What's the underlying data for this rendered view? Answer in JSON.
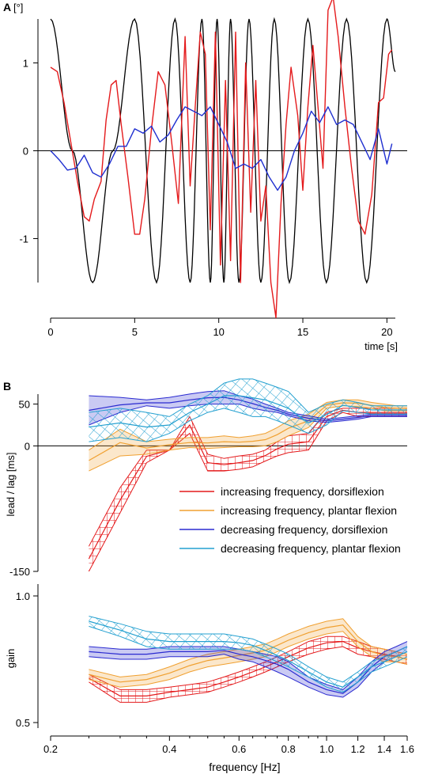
{
  "figure": {
    "panel_a_label": "A",
    "panel_a_unit": "[°]",
    "panel_b_label": "B"
  },
  "chart_data": [
    {
      "type": "line",
      "panel": "A",
      "ylabel": "[°]",
      "xlabel": "time [s]",
      "xlim": [
        0,
        20.5
      ],
      "ylim": [
        -1.5,
        1.5
      ],
      "xticks": [
        "0",
        "5",
        "10",
        "15",
        "20"
      ],
      "yticks": [
        "1",
        "0",
        "-1"
      ],
      "colors": {
        "stimulus": "#000000",
        "response_red": "#e41a1c",
        "response_blue": "#1f2fd0"
      },
      "series": [
        {
          "color": "#000000",
          "kind": "sinusoid",
          "x": [
            0,
            1.3,
            2.5,
            3.7,
            5,
            6.3,
            7.4,
            8.3,
            9.0,
            9.5,
            9.9,
            10.3,
            10.7,
            11.2,
            11.8,
            12.5,
            13.3,
            14.2,
            15.3,
            16.4,
            17.6,
            18.8,
            20.0,
            20.5
          ],
          "y": [
            1.5,
            0,
            -1.5,
            0,
            1.5,
            -1.5,
            1.5,
            -1.5,
            1.5,
            -1.5,
            1.5,
            -1.5,
            1.5,
            -1.5,
            1.5,
            -1.5,
            1.5,
            -1.5,
            1.5,
            -1.5,
            1.5,
            -1.5,
            1.5,
            0.9
          ]
        },
        {
          "color": "#e41a1c",
          "x": [
            0,
            0.4,
            0.8,
            1.2,
            1.6,
            2.0,
            2.3,
            2.6,
            3.0,
            3.3,
            3.6,
            3.9,
            4.2,
            4.6,
            5.0,
            5.3,
            5.6,
            6.0,
            6.4,
            6.8,
            7.2,
            7.6,
            8.0,
            8.3,
            8.6,
            8.9,
            9.2,
            9.5,
            9.8,
            10.1,
            10.4,
            10.7,
            11.0,
            11.3,
            11.6,
            11.9,
            12.2,
            12.5,
            12.8,
            13.1,
            13.4,
            13.7,
            14.0,
            14.3,
            14.7,
            15.0,
            15.3,
            15.6,
            15.9,
            16.2,
            16.5,
            16.8,
            17.1,
            17.5,
            17.9,
            18.3,
            18.7,
            19.1,
            19.5,
            19.8,
            20.1,
            20.3
          ],
          "y": [
            0.95,
            0.9,
            0.55,
            0.1,
            -0.35,
            -0.75,
            -0.8,
            -0.55,
            -0.35,
            0.35,
            0.75,
            0.8,
            0.3,
            -0.3,
            -0.95,
            -0.95,
            -0.55,
            0.25,
            0.9,
            0.75,
            0.1,
            -0.6,
            1.3,
            -0.4,
            0.5,
            1.35,
            1.1,
            -0.9,
            1.35,
            -1.3,
            0.8,
            -1.25,
            1.35,
            -1.5,
            1.0,
            -0.7,
            0.8,
            -0.8,
            -0.4,
            -1.5,
            -1.9,
            -0.6,
            0.3,
            0.95,
            0.4,
            -0.45,
            0.5,
            1.2,
            0.5,
            -0.2,
            1.6,
            1.75,
            1.3,
            0.5,
            -0.2,
            -0.8,
            -0.95,
            -0.5,
            0.55,
            0.6,
            1.1,
            1.15
          ]
        },
        {
          "color": "#1f2fd0",
          "x": [
            0,
            0.5,
            1.0,
            1.5,
            2.0,
            2.5,
            3.0,
            3.5,
            4.0,
            4.5,
            5.0,
            5.5,
            6.0,
            6.5,
            7.0,
            7.5,
            8.0,
            8.5,
            9.0,
            9.5,
            10.0,
            10.5,
            11.0,
            11.5,
            12.0,
            12.5,
            13.0,
            13.5,
            14.0,
            14.5,
            15.0,
            15.5,
            16.0,
            16.5,
            17.0,
            17.5,
            18.0,
            18.5,
            19.0,
            19.5,
            20.0,
            20.3
          ],
          "y": [
            0.0,
            -0.1,
            -0.22,
            -0.2,
            -0.05,
            -0.25,
            -0.3,
            -0.15,
            0.05,
            0.05,
            0.25,
            0.2,
            0.28,
            0.1,
            0.18,
            0.35,
            0.5,
            0.45,
            0.4,
            0.5,
            0.3,
            0.1,
            -0.2,
            -0.15,
            -0.2,
            -0.1,
            -0.3,
            -0.45,
            -0.3,
            0.0,
            0.2,
            0.45,
            0.32,
            0.5,
            0.3,
            0.35,
            0.3,
            0.1,
            -0.1,
            0.25,
            -0.15,
            0.08
          ]
        }
      ]
    },
    {
      "type": "area",
      "panel": "B-lag",
      "ylabel": "lead / lag [ms]",
      "ylim": [
        -150,
        60
      ],
      "yticks": [
        "50",
        "0",
        "-150"
      ],
      "x": [
        0.25,
        0.3,
        0.35,
        0.4,
        0.45,
        0.5,
        0.55,
        0.6,
        0.65,
        0.7,
        0.75,
        0.8,
        0.9,
        1.0,
        1.1,
        1.2,
        1.3,
        1.4,
        1.5,
        1.6
      ],
      "series": [
        {
          "name": "increasing frequency, dorsiflexion",
          "color": "#e41a1c",
          "pattern": "grid",
          "lower": [
            -150,
            -80,
            -20,
            -5,
            15,
            -30,
            -30,
            -28,
            -25,
            -18,
            -12,
            -8,
            -5,
            30,
            40,
            35,
            35,
            35,
            35,
            35
          ],
          "upper": [
            -120,
            -50,
            -5,
            -5,
            35,
            -10,
            -15,
            -12,
            -10,
            -5,
            5,
            12,
            15,
            40,
            45,
            45,
            45,
            45,
            45,
            45
          ]
        },
        {
          "name": "increasing frequency, plantar flexion",
          "color": "#f0a030",
          "pattern": "solid",
          "lower": [
            -30,
            -12,
            -10,
            -5,
            -2,
            -3,
            -2,
            -1,
            -1,
            0,
            5,
            12,
            22,
            45,
            48,
            47,
            45,
            42,
            42,
            42
          ],
          "upper": [
            -5,
            20,
            5,
            8,
            10,
            10,
            12,
            10,
            12,
            15,
            22,
            30,
            38,
            52,
            55,
            55,
            52,
            50,
            48,
            48
          ]
        },
        {
          "name": "decreasing frequency, dorsiflexion",
          "color": "#2a2ad0",
          "pattern": "solid",
          "lower": [
            25,
            40,
            48,
            45,
            48,
            50,
            50,
            50,
            45,
            42,
            40,
            36,
            30,
            28,
            30,
            32,
            35,
            35,
            35,
            35
          ],
          "upper": [
            60,
            58,
            55,
            58,
            62,
            65,
            66,
            60,
            56,
            50,
            45,
            40,
            36,
            32,
            34,
            36,
            38,
            38,
            38,
            38
          ]
        },
        {
          "name": "decreasing frequency, plantar flexion",
          "color": "#23a0d0",
          "pattern": "grid",
          "lower": [
            5,
            10,
            5,
            15,
            30,
            40,
            45,
            40,
            35,
            35,
            30,
            25,
            15,
            25,
            42,
            40,
            38,
            38,
            38,
            38
          ],
          "upper": [
            40,
            45,
            40,
            35,
            50,
            60,
            75,
            80,
            80,
            75,
            70,
            65,
            40,
            50,
            55,
            52,
            48,
            48,
            48,
            48
          ]
        }
      ]
    },
    {
      "type": "area",
      "panel": "B-gain",
      "ylabel": "gain",
      "xlabel": "frequency [Hz]",
      "xscale": "log",
      "xlim": [
        0.2,
        1.6
      ],
      "ylim": [
        0.5,
        1.0
      ],
      "yticks": [
        "1.0",
        "0.5"
      ],
      "xticks": [
        "0.2",
        "0.4",
        "0.6",
        "0.8",
        "1.0",
        "1.2",
        "1.4",
        "1.6"
      ],
      "x": [
        0.25,
        0.3,
        0.35,
        0.4,
        0.45,
        0.5,
        0.55,
        0.6,
        0.65,
        0.7,
        0.75,
        0.8,
        0.9,
        1.0,
        1.1,
        1.2,
        1.3,
        1.4,
        1.5,
        1.6
      ],
      "series": [
        {
          "color": "#e41a1c",
          "pattern": "grid",
          "lower": [
            0.66,
            0.58,
            0.58,
            0.6,
            0.61,
            0.62,
            0.64,
            0.66,
            0.68,
            0.7,
            0.72,
            0.74,
            0.77,
            0.79,
            0.8,
            0.77,
            0.76,
            0.75,
            0.74,
            0.73
          ],
          "upper": [
            0.69,
            0.63,
            0.63,
            0.64,
            0.65,
            0.66,
            0.68,
            0.7,
            0.72,
            0.74,
            0.76,
            0.78,
            0.82,
            0.84,
            0.84,
            0.82,
            0.8,
            0.79,
            0.78,
            0.77
          ]
        },
        {
          "color": "#f0a030",
          "pattern": "solid",
          "lower": [
            0.67,
            0.64,
            0.65,
            0.67,
            0.7,
            0.72,
            0.73,
            0.74,
            0.75,
            0.76,
            0.78,
            0.8,
            0.83,
            0.85,
            0.86,
            0.8,
            0.76,
            0.74,
            0.74,
            0.73
          ],
          "upper": [
            0.71,
            0.68,
            0.69,
            0.72,
            0.75,
            0.77,
            0.78,
            0.79,
            0.8,
            0.81,
            0.83,
            0.85,
            0.88,
            0.9,
            0.91,
            0.84,
            0.8,
            0.79,
            0.78,
            0.77
          ]
        },
        {
          "color": "#2a2ad0",
          "pattern": "solid",
          "lower": [
            0.76,
            0.75,
            0.75,
            0.76,
            0.76,
            0.76,
            0.77,
            0.75,
            0.74,
            0.72,
            0.7,
            0.68,
            0.64,
            0.61,
            0.6,
            0.64,
            0.7,
            0.74,
            0.76,
            0.78
          ],
          "upper": [
            0.8,
            0.79,
            0.79,
            0.8,
            0.8,
            0.8,
            0.8,
            0.79,
            0.78,
            0.77,
            0.76,
            0.74,
            0.68,
            0.65,
            0.63,
            0.68,
            0.74,
            0.78,
            0.8,
            0.82
          ]
        },
        {
          "color": "#23a0d0",
          "pattern": "grid",
          "lower": [
            0.88,
            0.84,
            0.8,
            0.79,
            0.79,
            0.79,
            0.79,
            0.79,
            0.78,
            0.76,
            0.74,
            0.72,
            0.68,
            0.64,
            0.62,
            0.66,
            0.7,
            0.72,
            0.74,
            0.76
          ],
          "upper": [
            0.92,
            0.89,
            0.86,
            0.85,
            0.85,
            0.85,
            0.85,
            0.84,
            0.83,
            0.81,
            0.79,
            0.77,
            0.72,
            0.68,
            0.66,
            0.7,
            0.74,
            0.76,
            0.78,
            0.8
          ]
        }
      ]
    }
  ]
}
